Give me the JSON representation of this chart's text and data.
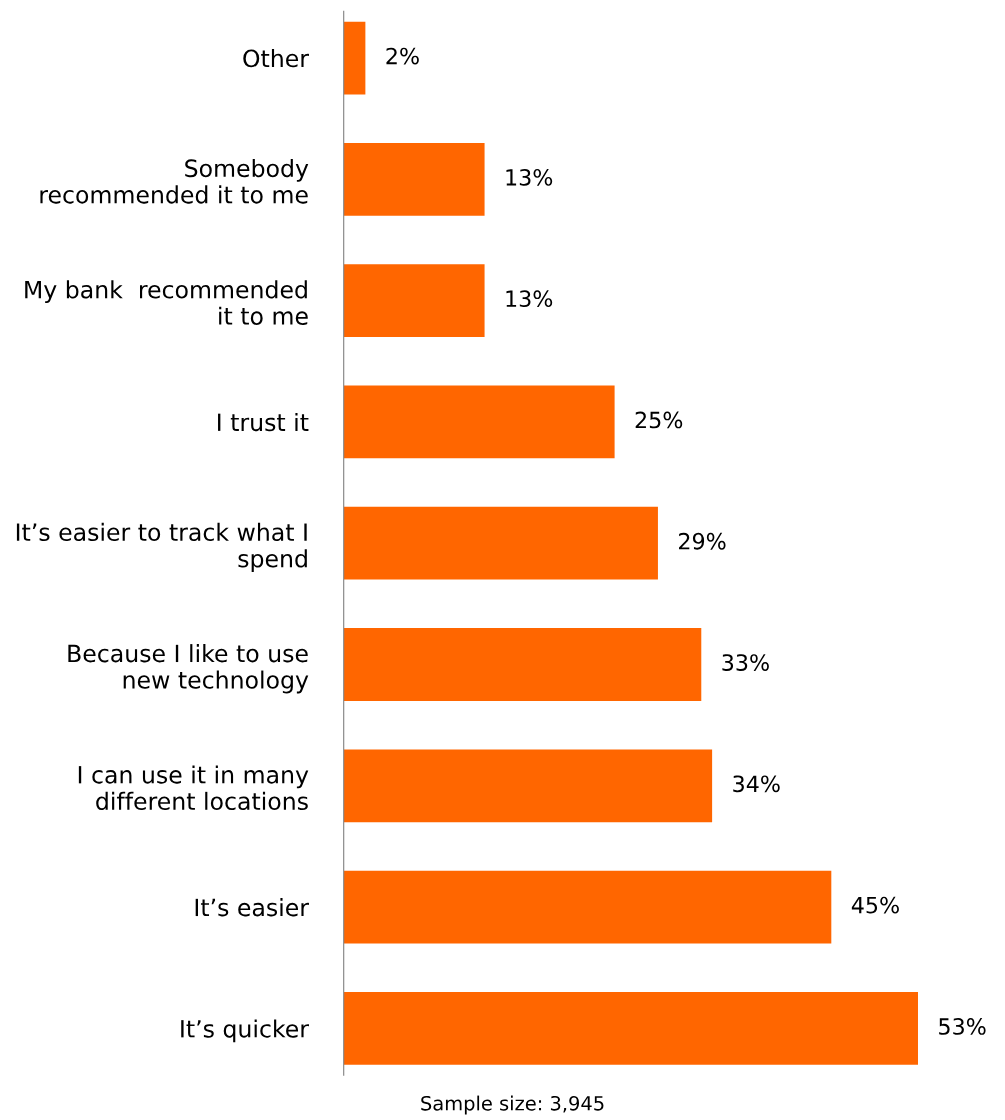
{
  "chart_data": {
    "type": "bar",
    "orientation": "horizontal",
    "categories": [
      "Other",
      "Somebody\nrecommended it to me",
      "My bank  recommended\nit to me",
      "I trust it",
      "It’s easier to track what I\nspend",
      "Because I like to use\nnew technology",
      "I can use it in many\ndifferent locations",
      "It’s easier",
      "It’s quicker"
    ],
    "values": [
      2,
      13,
      13,
      25,
      29,
      33,
      34,
      45,
      53
    ],
    "value_labels": [
      "2%",
      "13%",
      "13%",
      "25%",
      "29%",
      "33%",
      "34%",
      "45%",
      "53%"
    ],
    "color": "#ff6600",
    "annotations": [
      "Sample size: 3,945"
    ],
    "grid": false,
    "legend": false
  }
}
